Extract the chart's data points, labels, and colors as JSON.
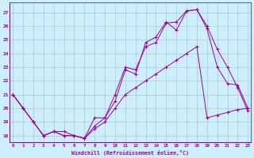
{
  "xlabel": "Windchill (Refroidissement éolien,°C)",
  "background_color": "#cceeff",
  "grid_color": "#aacccc",
  "line_color": "#990099",
  "spine_color": "#666699",
  "x_ticks": [
    0,
    1,
    2,
    3,
    4,
    5,
    6,
    7,
    8,
    9,
    10,
    11,
    12,
    13,
    14,
    15,
    16,
    17,
    18,
    19,
    20,
    21,
    22,
    23
  ],
  "y_ticks": [
    18,
    19,
    20,
    21,
    22,
    23,
    24,
    25,
    26,
    27
  ],
  "xlim": [
    -0.3,
    23.3
  ],
  "ylim": [
    17.5,
    27.7
  ],
  "line1_x": [
    0,
    1,
    2,
    3,
    4,
    5,
    6,
    7,
    8,
    9,
    10,
    11,
    12,
    13,
    14,
    15,
    16,
    17,
    18,
    19,
    20,
    21,
    22,
    23
  ],
  "line1_y": [
    21.0,
    20.0,
    19.0,
    18.0,
    18.3,
    18.0,
    18.0,
    17.8,
    18.7,
    19.3,
    20.5,
    22.8,
    22.5,
    24.8,
    25.2,
    26.3,
    25.7,
    27.1,
    27.2,
    25.8,
    23.0,
    21.8,
    21.7,
    20.0
  ],
  "line2_x": [
    0,
    1,
    2,
    3,
    4,
    5,
    6,
    7,
    8,
    9,
    10,
    11,
    12,
    13,
    14,
    15,
    16,
    17,
    18,
    19,
    20,
    21,
    22,
    23
  ],
  "line2_y": [
    21.0,
    20.0,
    19.0,
    18.0,
    18.3,
    18.3,
    18.0,
    17.8,
    19.3,
    19.3,
    21.0,
    23.0,
    22.8,
    24.5,
    24.8,
    26.2,
    26.3,
    27.1,
    27.2,
    26.0,
    24.3,
    23.0,
    21.5,
    19.8
  ],
  "line3_x": [
    0,
    1,
    2,
    3,
    4,
    5,
    6,
    7,
    8,
    9,
    10,
    11,
    12,
    13,
    14,
    15,
    16,
    17,
    18,
    19,
    20,
    21,
    22,
    23
  ],
  "line3_y": [
    21.0,
    20.0,
    19.0,
    18.0,
    18.3,
    18.0,
    18.0,
    17.8,
    18.5,
    19.0,
    20.0,
    21.0,
    21.5,
    22.0,
    22.5,
    23.0,
    23.5,
    24.0,
    24.5,
    19.3,
    19.5,
    19.7,
    19.9,
    20.0
  ]
}
